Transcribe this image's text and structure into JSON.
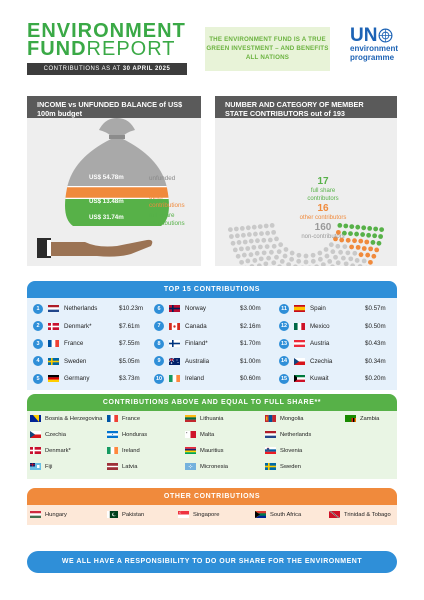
{
  "header": {
    "title_line1": "ENVIRONMENT",
    "title_line2_bold": "FUND",
    "title_line2_rest": "REPORT",
    "date_prefix": "CONTRIBUTIONS AS AT",
    "date": "30 APRIL 2025",
    "quote": "THE ENVIRONMENT FUND IS A TRUE GREEN INVESTMENT – AND BENEFITS ALL NATIONS",
    "logo_un": "UN",
    "logo_line1": "environment",
    "logo_line2": "programme"
  },
  "income": {
    "heading": "INCOME vs UNFUNDED BALANCE of US$ 100m budget",
    "unfunded_value": "US$ 54.78m",
    "unfunded_label": "unfunded",
    "other_value": "US$ 13.48m",
    "other_label_1": "other",
    "other_label_2": "contributions",
    "full_value": "US$ 31.74m",
    "full_label_1": "full share",
    "full_label_2": "contributions",
    "colors": {
      "unfunded": "#a9a9a9",
      "other": "#f08a3c",
      "full": "#57b148"
    }
  },
  "members": {
    "heading": "NUMBER AND CATEGORY OF MEMBER STATE CONTRIBUTORS out of 193",
    "full_count": "17",
    "full_label_1": "full share",
    "full_label_2": "contributors",
    "other_count": "16",
    "other_label": "other contributors",
    "non_count": "160",
    "non_label": "non-contributors",
    "total": 193,
    "colors": {
      "full": "#57b148",
      "other": "#f08a3c",
      "non": "#c9c9c9"
    }
  },
  "top15": {
    "heading": "TOP 15 CONTRIBUTIONS",
    "items": [
      {
        "rank": "1",
        "country": "Netherlands",
        "value": "$10.23m",
        "flag": "netherlands"
      },
      {
        "rank": "2",
        "country": "Denmark*",
        "value": "$7.61m",
        "flag": "denmark"
      },
      {
        "rank": "3",
        "country": "France",
        "value": "$7.55m",
        "flag": "france"
      },
      {
        "rank": "4",
        "country": "Sweden",
        "value": "$5.05m",
        "flag": "sweden"
      },
      {
        "rank": "5",
        "country": "Germany",
        "value": "$3.73m",
        "flag": "germany"
      },
      {
        "rank": "6",
        "country": "Norway",
        "value": "$3.00m",
        "flag": "norway"
      },
      {
        "rank": "7",
        "country": "Canada",
        "value": "$2.16m",
        "flag": "canada"
      },
      {
        "rank": "8",
        "country": "Finland*",
        "value": "$1.70m",
        "flag": "finland"
      },
      {
        "rank": "9",
        "country": "Australia",
        "value": "$1.00m",
        "flag": "australia"
      },
      {
        "rank": "10",
        "country": "Ireland",
        "value": "$0.60m",
        "flag": "ireland"
      },
      {
        "rank": "11",
        "country": "Spain",
        "value": "$0.57m",
        "flag": "spain"
      },
      {
        "rank": "12",
        "country": "Mexico",
        "value": "$0.50m",
        "flag": "mexico"
      },
      {
        "rank": "13",
        "country": "Austria",
        "value": "$0.43m",
        "flag": "austria"
      },
      {
        "rank": "14",
        "country": "Czechia",
        "value": "$0.34m",
        "flag": "czechia"
      },
      {
        "rank": "15",
        "country": "Kuwait",
        "value": "$0.20m",
        "flag": "kuwait"
      }
    ]
  },
  "fullshare": {
    "heading": "CONTRIBUTIONS ABOVE AND EQUAL TO FULL SHARE**",
    "items": [
      {
        "country": "Bosnia & Herzegovina",
        "flag": "bosnia"
      },
      {
        "country": "Czechia",
        "flag": "czechia"
      },
      {
        "country": "Denmark*",
        "flag": "denmark"
      },
      {
        "country": "Fiji",
        "flag": "fiji"
      },
      {
        "country": "France",
        "flag": "france"
      },
      {
        "country": "Honduras",
        "flag": "honduras"
      },
      {
        "country": "Ireland",
        "flag": "ireland"
      },
      {
        "country": "Latvia",
        "flag": "latvia"
      },
      {
        "country": "Lithuania",
        "flag": "lithuania"
      },
      {
        "country": "Malta",
        "flag": "malta"
      },
      {
        "country": "Mauritius",
        "flag": "mauritius"
      },
      {
        "country": "Micronesia",
        "flag": "micronesia"
      },
      {
        "country": "Mongolia",
        "flag": "mongolia"
      },
      {
        "country": "Netherlands",
        "flag": "netherlands"
      },
      {
        "country": "Slovenia",
        "flag": "slovenia"
      },
      {
        "country": "Sweden",
        "flag": "sweden"
      },
      {
        "country": "Zambia",
        "flag": "zambia"
      }
    ]
  },
  "other": {
    "heading": "OTHER CONTRIBUTIONS",
    "items": [
      {
        "country": "Hungary",
        "flag": "hungary"
      },
      {
        "country": "Pakistan",
        "flag": "pakistan"
      },
      {
        "country": "Singapore",
        "flag": "singapore"
      },
      {
        "country": "South Africa",
        "flag": "southafrica"
      },
      {
        "country": "Trinidad & Tobago",
        "flag": "trinidad"
      }
    ]
  },
  "footer": {
    "text": "WE ALL HAVE A RESPONSIBILITY TO DO OUR SHARE FOR THE ENVIRONMENT"
  }
}
